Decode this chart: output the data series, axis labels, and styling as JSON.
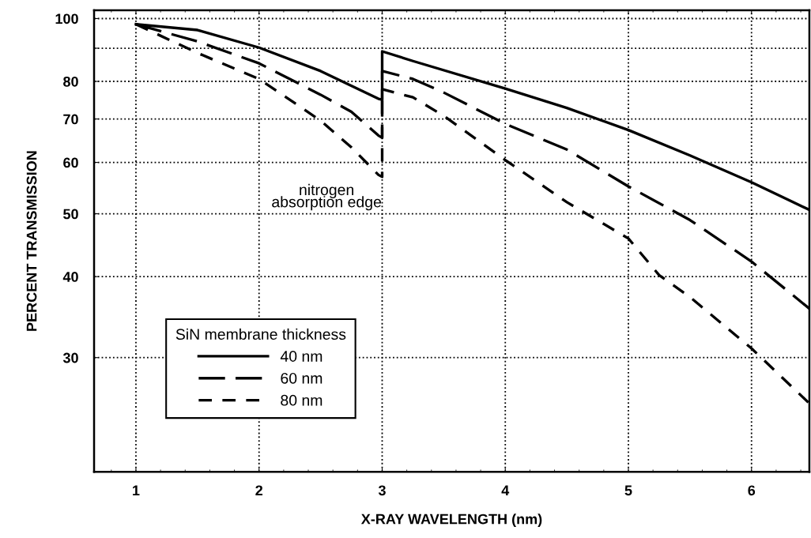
{
  "chart_data": {
    "type": "line",
    "xlabel": "X-RAY WAVELENGTH (nm)",
    "ylabel": "PERCENT TRANSMISSION",
    "legend_title": "SiN membrane thickness",
    "log": "y",
    "xlim": [
      0.66,
      6.47
    ],
    "ylim": [
      20,
      103
    ],
    "xticks": [
      1,
      2,
      3,
      4,
      5,
      6
    ],
    "yticks": [
      30,
      40,
      50,
      60,
      70,
      80,
      {
        "value": 90,
        "label": null
      },
      100
    ],
    "grid": true,
    "legend": "bottom left",
    "marker": "none",
    "annotations": [
      "nitrogen\nabsorption edge"
    ],
    "series": [
      {
        "name": "40 nm",
        "color": "#000000",
        "line_style": "solid",
        "x": [
          1,
          1.5,
          2,
          2.5,
          2.97,
          3,
          3,
          3.25,
          4,
          4.5,
          5,
          5.5,
          6,
          6.47
        ],
        "values": [
          98,
          96,
          90.2,
          83,
          75.2,
          75,
          89,
          86,
          78,
          72.8,
          67.3,
          61.5,
          55.9,
          50.7
        ]
      },
      {
        "name": "60 nm",
        "color": "#000000",
        "line_style": "dashed",
        "x": [
          1,
          1.5,
          2,
          2.5,
          2.75,
          2.97,
          3,
          3,
          3.25,
          3.5,
          4,
          4.5,
          5,
          5.5,
          6,
          6.47
        ],
        "values": [
          98,
          92.2,
          85.3,
          76.3,
          71.8,
          66,
          65.5,
          83,
          80.7,
          76.9,
          68.8,
          62.8,
          55.1,
          48.9,
          42.2,
          35.7
        ]
      },
      {
        "name": "80 nm",
        "color": "#000000",
        "line_style": "dotted",
        "x": [
          1,
          1.5,
          2,
          2.5,
          2.75,
          2.97,
          3,
          3,
          3.25,
          3.5,
          4,
          4.5,
          5,
          5.25,
          5.5,
          6,
          6.47
        ],
        "values": [
          98,
          88.5,
          80.7,
          69.6,
          63.3,
          57.4,
          57,
          77.8,
          75.6,
          70.8,
          60.5,
          52.1,
          45.8,
          40.2,
          37.2,
          31,
          25.5
        ]
      }
    ]
  }
}
